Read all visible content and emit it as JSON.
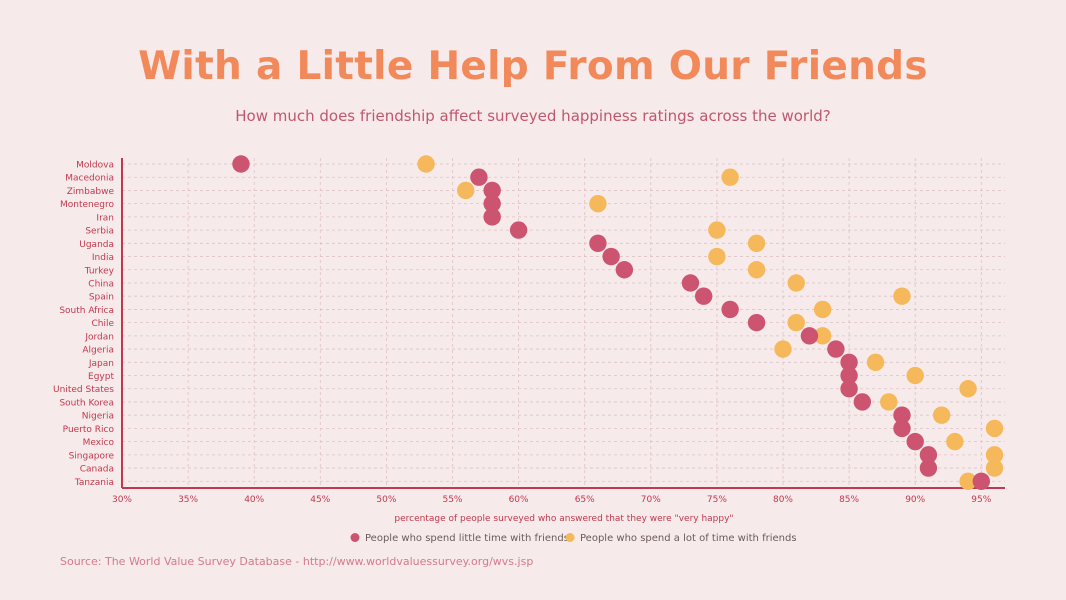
{
  "title": "With a Little Help From Our Friends",
  "subtitle": "How much does friendship affect surveyed happiness ratings across the world?",
  "source": "Source: The World Value Survey Database - http://www.worldvaluessurvey.org/wvs.jsp",
  "colors": {
    "background": "#f7eaea",
    "title": "#f2895a",
    "text": "#c0576d",
    "axis": "#c0394e",
    "grid": "#dcc2c6",
    "little": "#cc5470",
    "lot": "#f5b85a"
  },
  "chart_data": {
    "type": "scatter",
    "xlabel": "percentage of people surveyed who answered that they were \"very happy\"",
    "ylabel": "",
    "xlim": [
      30,
      97
    ],
    "x_ticks": [
      30,
      35,
      40,
      45,
      50,
      55,
      60,
      65,
      70,
      75,
      80,
      85,
      90,
      95
    ],
    "x_tick_labels": [
      "30%",
      "35%",
      "40%",
      "45%",
      "50%",
      "55%",
      "60%",
      "65%",
      "70%",
      "75%",
      "80%",
      "85%",
      "90%",
      "95%"
    ],
    "grid": true,
    "legend_position": "bottom",
    "categories": [
      "Moldova",
      "Macedonia",
      "Zimbabwe",
      "Montenegro",
      "Iran",
      "Serbia",
      "Uganda",
      "India",
      "Turkey",
      "China",
      "Spain",
      "South Africa",
      "Chile",
      "Jordan",
      "Algeria",
      "Japan",
      "Egypt",
      "United States",
      "South Korea",
      "Nigeria",
      "Puerto Rico",
      "Mexico",
      "Singapore",
      "Canada",
      "Tanzania"
    ],
    "series": [
      {
        "name": "People who spend little time with friends",
        "color": "#cc5470",
        "values": [
          39,
          57,
          58,
          58,
          58,
          60,
          66,
          67,
          68,
          73,
          74,
          76,
          78,
          82,
          84,
          85,
          85,
          85,
          86,
          89,
          89,
          90,
          91,
          91,
          95
        ]
      },
      {
        "name": "People who spend a lot of time with friends",
        "color": "#f5b85a",
        "values": [
          53,
          76,
          56,
          66,
          58,
          75,
          78,
          75,
          78,
          81,
          89,
          83,
          81,
          83,
          80,
          87,
          90,
          94,
          88,
          92,
          96,
          93,
          96,
          96,
          94
        ]
      }
    ]
  }
}
